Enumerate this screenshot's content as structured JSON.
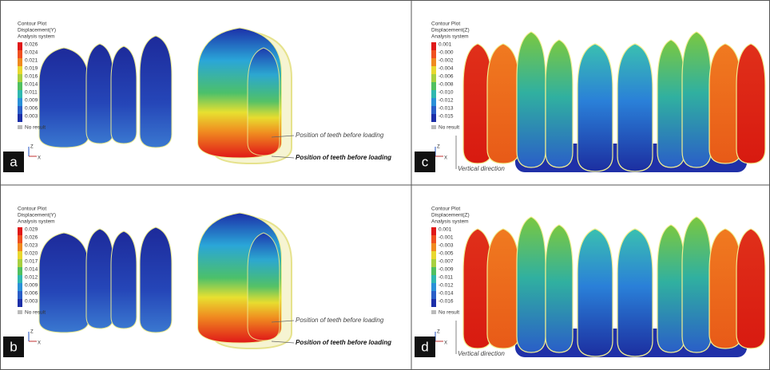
{
  "panels": [
    {
      "label": "a",
      "legend": {
        "title": "Contour Plot",
        "quantity": "Displacement(Y)",
        "system": "Analysis system",
        "values": [
          "0.026",
          "0.024",
          "0.021",
          "0.019",
          "0.016",
          "0.014",
          "0.011",
          "0.009",
          "0.006",
          "0.003"
        ],
        "no_result": "No result"
      },
      "annotations": [
        "Position of teeth before loading",
        "Position of teeth before loading"
      ],
      "axes": [
        "Z",
        "X"
      ]
    },
    {
      "label": "b",
      "legend": {
        "title": "Contour Plot",
        "quantity": "Displacement(Y)",
        "system": "Analysis system",
        "values": [
          "0.029",
          "0.026",
          "0.023",
          "0.020",
          "0.017",
          "0.014",
          "0.012",
          "0.009",
          "0.006",
          "0.003"
        ],
        "no_result": "No result"
      },
      "annotations": [
        "Position of teeth before loading",
        "Position of teeth before loading"
      ],
      "axes": [
        "Z",
        "X"
      ]
    },
    {
      "label": "c",
      "legend": {
        "title": "Contour Plot",
        "quantity": "Displacement(Z)",
        "system": "Analysis system",
        "values": [
          "0.001",
          "-0.000",
          "-0.002",
          "-0.004",
          "-0.006",
          "-0.008",
          "-0.010",
          "-0.012",
          "-0.013",
          "-0.015"
        ],
        "no_result": "No result"
      },
      "annotations": [
        "Vertical direction"
      ],
      "axes": [
        "Z",
        "X"
      ]
    },
    {
      "label": "d",
      "legend": {
        "title": "Contour Plot",
        "quantity": "Displacement(Z)",
        "system": "Analysis system",
        "values": [
          "0.001",
          "-0.001",
          "-0.003",
          "-0.005",
          "-0.007",
          "-0.009",
          "-0.011",
          "-0.012",
          "-0.014",
          "-0.016"
        ],
        "no_result": "No result"
      },
      "annotations": [
        "Vertical direction"
      ],
      "axes": [
        "Z",
        "X"
      ]
    }
  ]
}
